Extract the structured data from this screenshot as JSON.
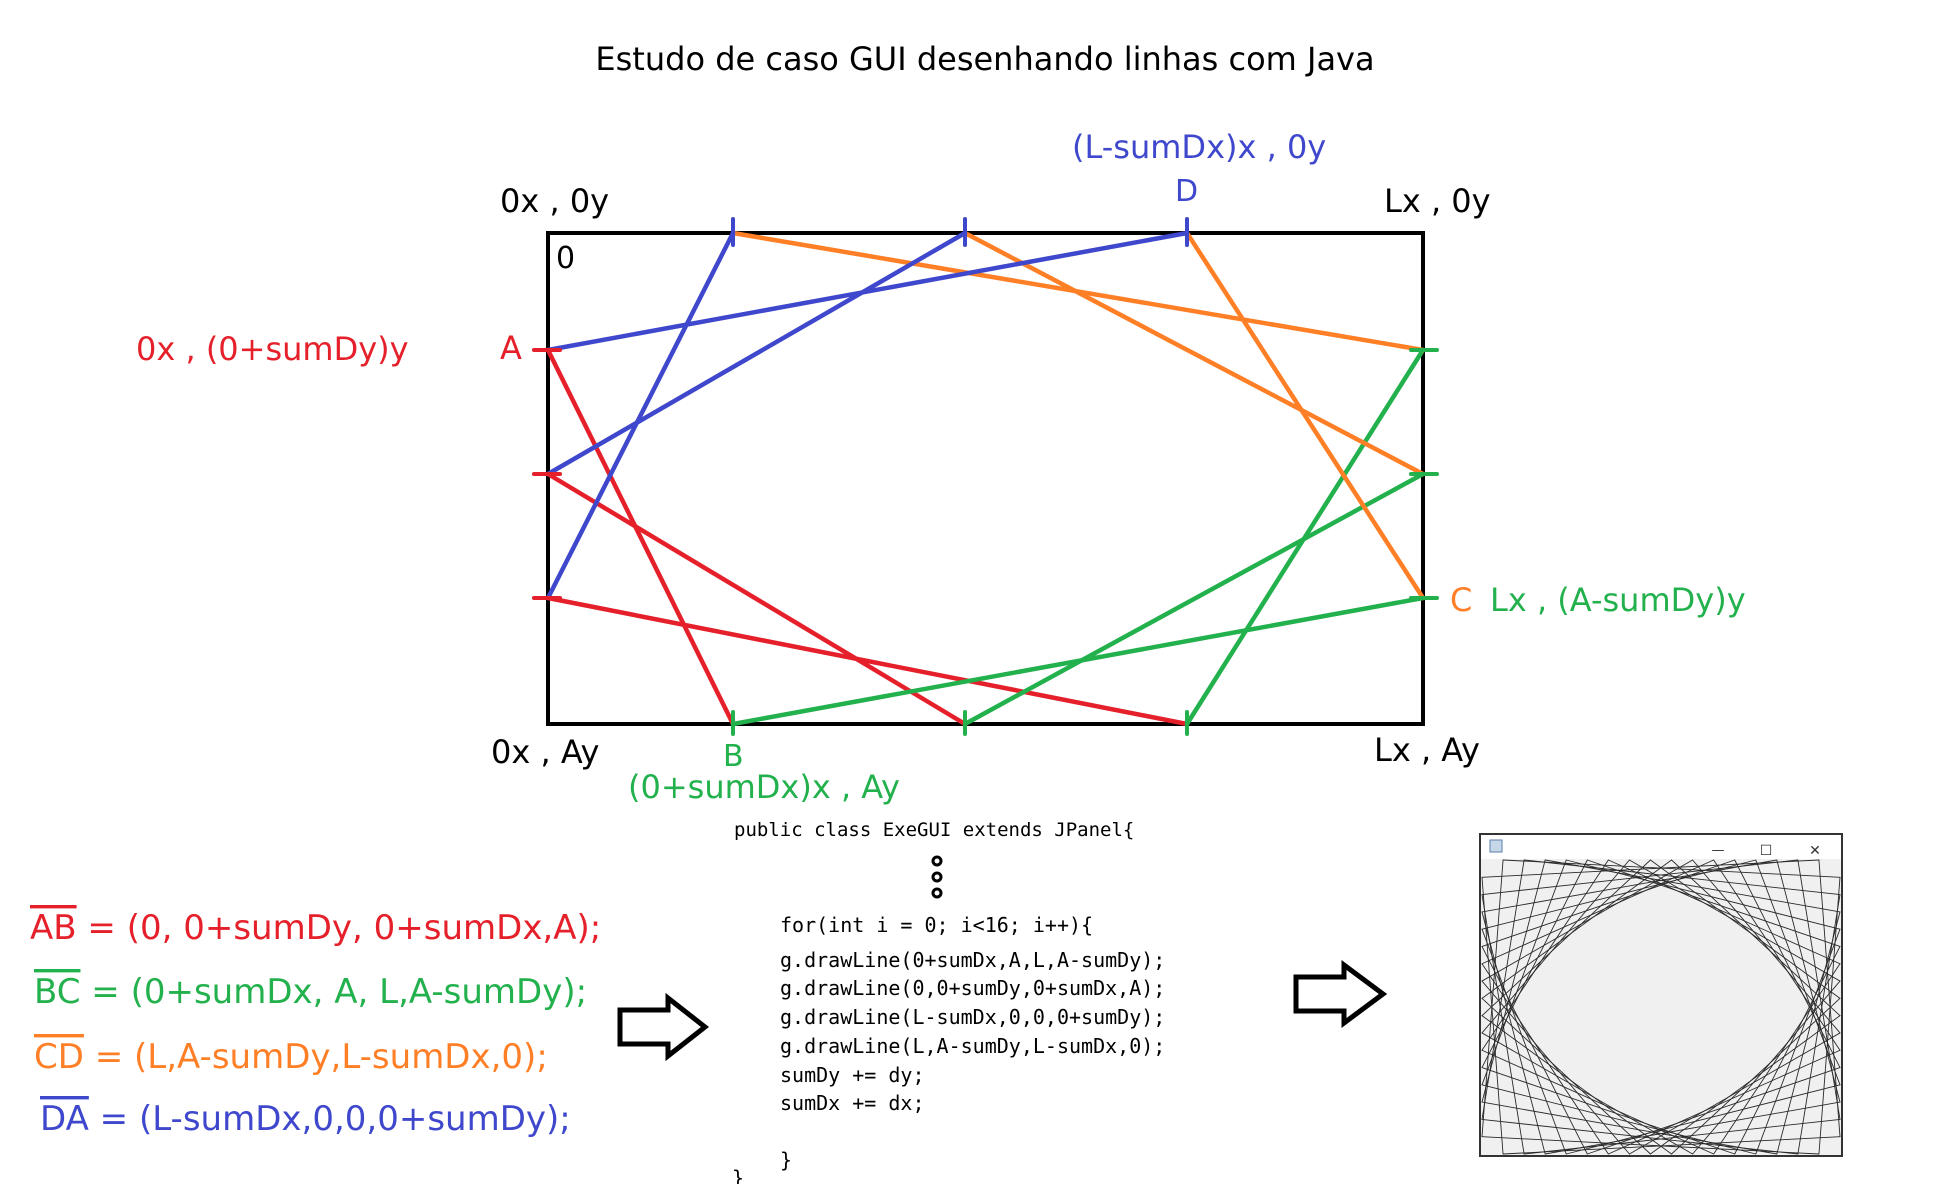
{
  "title": "Estudo de caso GUI desenhando linhas com Java",
  "colors": {
    "red": "#e5202a",
    "green": "#22b14c",
    "orange": "#ff7f27",
    "blue": "#3f48cc",
    "black": "#000000"
  },
  "corners": {
    "top_left": "0x , 0y",
    "top_right": "Lx , 0y",
    "bottom_left": "0x , Ay",
    "bottom_right": "Lx , Ay",
    "origin": "0"
  },
  "points": {
    "A": {
      "name": "A",
      "coord": "0x , (0+sumDy)y"
    },
    "B": {
      "name": "B",
      "coord": "(0+sumDx)x , Ay"
    },
    "C": {
      "name": "C",
      "coord": "Lx , (A-sumDy)y"
    },
    "D": {
      "name": "D",
      "coord": "(L-sumDx)x , 0y"
    }
  },
  "equations": [
    {
      "seg": "AB",
      "rest": " = (0, 0+sumDy, 0+sumDx,A);",
      "color": "red"
    },
    {
      "seg": "BC",
      "rest": " = (0+sumDx, A, L,A-sumDy);",
      "color": "green"
    },
    {
      "seg": "CD",
      "rest": " = (L,A-sumDy,L-sumDx,0);",
      "color": "orange"
    },
    {
      "seg": "DA",
      "rest": " = (L-sumDx,0,0,0+sumDy);",
      "color": "blue"
    }
  ],
  "code": {
    "header": "public class ExeGUI extends JPanel{",
    "lines": [
      "for(int i = 0; i<16; i++){",
      "g.drawLine(0+sumDx,A,L,A-sumDy);",
      "g.drawLine(0,0+sumDy,0+sumDx,A);",
      "g.drawLine(L-sumDx,0,0,0+sumDy);",
      "g.drawLine(L,A-sumDy,L-sumDx,0);",
      "sumDy += dy;",
      "sumDx += dx;"
    ],
    "close_inner": "}",
    "close_outer": "}"
  },
  "window": {
    "minimize": "—",
    "maximize": "☐",
    "close": "✕"
  },
  "icons": [
    "arrow-right-icon",
    "java-app-icon",
    "vertical-ellipsis-icon"
  ]
}
